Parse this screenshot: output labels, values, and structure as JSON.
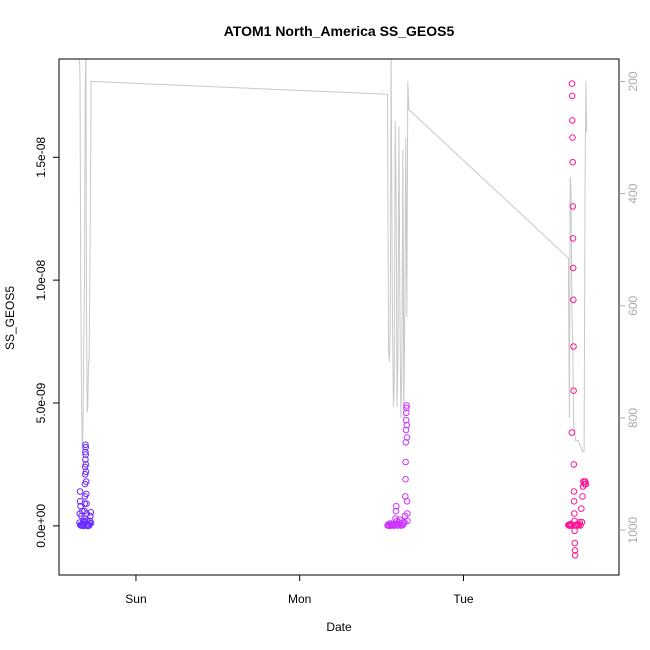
{
  "chart_data": {
    "type": "scatter",
    "title": "ATOM1 North_America SS_GEOS5",
    "xlabel": "Date",
    "ylabel": "SS_GEOS5",
    "x_ticks": [
      {
        "label": "Sun",
        "day": 1.0
      },
      {
        "label": "Mon",
        "day": 2.0
      },
      {
        "label": "Tue",
        "day": 3.0
      }
    ],
    "xlim_days": [
      0.53,
      3.95
    ],
    "ylim": [
      -2e-09,
      1.9e-08
    ],
    "y_ticks": [
      {
        "label": "0.0e+00",
        "value": 0
      },
      {
        "label": "5.0e-09",
        "value": 5e-09
      },
      {
        "label": "1.0e-08",
        "value": 1e-08
      },
      {
        "label": "1.5e-08",
        "value": 1.5e-08
      }
    ],
    "y2_label": "",
    "y2_reversed": true,
    "y2lim": [
      1080,
      160
    ],
    "y2_ticks": [
      200,
      400,
      600,
      800,
      1000
    ],
    "pressure_line": {
      "color": "#c8c8c8",
      "points": [
        [
          0.653,
          120
        ],
        [
          0.658,
          200
        ],
        [
          0.663,
          580
        ],
        [
          0.668,
          780
        ],
        [
          0.672,
          860
        ],
        [
          0.677,
          800
        ],
        [
          0.682,
          640
        ],
        [
          0.686,
          560
        ],
        [
          0.69,
          220
        ],
        [
          0.694,
          140
        ],
        [
          0.698,
          600
        ],
        [
          0.702,
          790
        ],
        [
          0.706,
          780
        ],
        [
          0.71,
          700
        ],
        [
          0.714,
          700
        ],
        [
          0.72,
          500
        ],
        [
          0.726,
          200
        ],
        [
          2.536,
          223
        ],
        [
          2.543,
          680
        ],
        [
          2.548,
          700
        ],
        [
          2.553,
          640
        ],
        [
          2.558,
          150
        ],
        [
          2.566,
          600
        ],
        [
          2.572,
          780
        ],
        [
          2.577,
          740
        ],
        [
          2.583,
          270
        ],
        [
          2.589,
          400
        ],
        [
          2.594,
          780
        ],
        [
          2.6,
          700
        ],
        [
          2.606,
          280
        ],
        [
          2.612,
          600
        ],
        [
          2.618,
          800
        ],
        [
          2.624,
          710
        ],
        [
          2.63,
          320
        ],
        [
          2.636,
          800
        ],
        [
          2.642,
          600
        ],
        [
          2.648,
          300
        ],
        [
          2.654,
          620
        ],
        [
          2.66,
          200
        ],
        [
          2.666,
          250
        ],
        [
          3.641,
          515
        ],
        [
          3.647,
          800
        ],
        [
          3.652,
          370
        ],
        [
          3.657,
          390
        ],
        [
          3.662,
          590
        ],
        [
          3.668,
          680
        ],
        [
          3.672,
          800
        ],
        [
          3.676,
          820
        ],
        [
          3.68,
          820
        ],
        [
          3.684,
          840
        ],
        [
          3.688,
          840
        ],
        [
          3.7,
          840
        ],
        [
          3.715,
          850
        ],
        [
          3.728,
          860
        ],
        [
          3.737,
          860
        ],
        [
          3.743,
          370
        ],
        [
          3.748,
          200
        ],
        [
          3.752,
          290
        ]
      ]
    },
    "series": [
      {
        "color": "#6a2bff",
        "points": [
          [
            0.655,
            1.3e-10
          ],
          [
            0.657,
            5e-10
          ],
          [
            0.658,
            1e-09
          ],
          [
            0.659,
            1.4e-09
          ],
          [
            0.66,
            3e-11
          ],
          [
            0.662,
            8e-10
          ],
          [
            0.664,
            2e-11
          ],
          [
            0.667,
            4e-10
          ],
          [
            0.67,
            1e-11
          ],
          [
            0.673,
            6e-10
          ],
          [
            0.676,
            3e-11
          ],
          [
            0.679,
            2e-10
          ],
          [
            0.681,
            0
          ],
          [
            0.683,
            7e-11
          ],
          [
            0.684,
            1.5e-10
          ],
          [
            0.685,
            3e-10
          ],
          [
            0.686,
            6e-10
          ],
          [
            0.687,
            9e-10
          ],
          [
            0.688,
            1.2e-09
          ],
          [
            0.689,
            1.7e-09
          ],
          [
            0.69,
            2.1e-09
          ],
          [
            0.69,
            2.4e-09
          ],
          [
            0.691,
            2.7e-09
          ],
          [
            0.691,
            3e-09
          ],
          [
            0.692,
            3.3e-09
          ],
          [
            0.693,
            3.2e-09
          ],
          [
            0.693,
            2.9e-09
          ],
          [
            0.694,
            2.5e-09
          ],
          [
            0.695,
            2.2e-09
          ],
          [
            0.696,
            1.8e-09
          ],
          [
            0.697,
            1.3e-09
          ],
          [
            0.698,
            9e-10
          ],
          [
            0.699,
            5e-10
          ],
          [
            0.7,
            2e-10
          ],
          [
            0.703,
            5e-11
          ],
          [
            0.706,
            0
          ],
          [
            0.709,
            1e-11
          ],
          [
            0.712,
            3e-11
          ],
          [
            0.715,
            2e-11
          ],
          [
            0.718,
            1e-10
          ],
          [
            0.72,
            2e-10
          ],
          [
            0.722,
            4e-10
          ],
          [
            0.724,
            5.5e-10
          ],
          [
            0.726,
            1.2e-10
          ]
        ]
      },
      {
        "color": "#cc33ff",
        "points": [
          [
            2.537,
            2e-11
          ],
          [
            2.541,
            5e-11
          ],
          [
            2.545,
            3e-11
          ],
          [
            2.549,
            0
          ],
          [
            2.553,
            1e-10
          ],
          [
            2.557,
            4e-11
          ],
          [
            2.561,
            2e-11
          ],
          [
            2.565,
            6e-11
          ],
          [
            2.569,
            3e-11
          ],
          [
            2.573,
            1e-11
          ],
          [
            2.577,
            7e-11
          ],
          [
            2.581,
            2e-11
          ],
          [
            2.585,
            3e-10
          ],
          [
            2.588,
            6e-10
          ],
          [
            2.59,
            8e-10
          ],
          [
            2.594,
            2e-10
          ],
          [
            2.598,
            1e-11
          ],
          [
            2.602,
            5e-11
          ],
          [
            2.606,
            1.5e-10
          ],
          [
            2.61,
            2.5e-10
          ],
          [
            2.614,
            1e-10
          ],
          [
            2.618,
            3e-11
          ],
          [
            2.622,
            1e-11
          ],
          [
            2.63,
            4e-11
          ],
          [
            2.636,
            1e-10
          ],
          [
            2.64,
            1.5e-10
          ],
          [
            2.643,
            4e-10
          ],
          [
            2.645,
            1.2e-09
          ],
          [
            2.646,
            1.9e-09
          ],
          [
            2.647,
            2.6e-09
          ],
          [
            2.648,
            3.4e-09
          ],
          [
            2.649,
            3.9e-09
          ],
          [
            2.65,
            4.3e-09
          ],
          [
            2.651,
            4.6e-09
          ],
          [
            2.652,
            4.8e-09
          ],
          [
            2.653,
            4.9e-09
          ],
          [
            2.654,
            4.1e-09
          ],
          [
            2.655,
            3.6e-09
          ],
          [
            2.656,
            1e-09
          ],
          [
            2.657,
            5e-10
          ],
          [
            2.658,
            2e-10
          ]
        ]
      },
      {
        "color": "#ff1493",
        "points": [
          [
            3.641,
            3e-11
          ],
          [
            3.645,
            1e-11
          ],
          [
            3.649,
            5e-11
          ],
          [
            3.653,
            2e-11
          ],
          [
            3.657,
            8e-11
          ],
          [
            3.66,
            1e-11
          ],
          [
            3.662,
            3.8e-09
          ],
          [
            3.663,
            1.8e-08
          ],
          [
            3.664,
            1.75e-08
          ],
          [
            3.665,
            1.65e-08
          ],
          [
            3.666,
            1.58e-08
          ],
          [
            3.667,
            1.48e-08
          ],
          [
            3.668,
            1.3e-08
          ],
          [
            3.669,
            1.17e-08
          ],
          [
            3.67,
            1.05e-08
          ],
          [
            3.671,
            9.2e-09
          ],
          [
            3.672,
            7.3e-09
          ],
          [
            3.673,
            5.5e-09
          ],
          [
            3.674,
            2.5e-09
          ],
          [
            3.675,
            1.4e-09
          ],
          [
            3.676,
            1e-09
          ],
          [
            3.677,
            5e-10
          ],
          [
            3.678,
            2e-10
          ],
          [
            3.679,
            -2e-10
          ],
          [
            3.68,
            -7e-10
          ],
          [
            3.681,
            -1e-09
          ],
          [
            3.682,
            -1.2e-09
          ],
          [
            3.685,
            2e-11
          ],
          [
            3.69,
            5e-11
          ],
          [
            3.695,
            1e-11
          ],
          [
            3.7,
            8e-11
          ],
          [
            3.705,
            3e-11
          ],
          [
            3.71,
            1.5e-10
          ],
          [
            3.715,
            2e-11
          ],
          [
            3.72,
            7e-10
          ],
          [
            3.724,
            1.5e-10
          ],
          [
            3.727,
            1.2e-09
          ],
          [
            3.73,
            1.6e-09
          ],
          [
            3.733,
            1.8e-09
          ],
          [
            3.736,
            1.8e-09
          ],
          [
            3.74,
            1.7e-09
          ],
          [
            3.744,
            1.8e-09
          ],
          [
            3.748,
            1.7e-09
          ]
        ]
      }
    ]
  }
}
